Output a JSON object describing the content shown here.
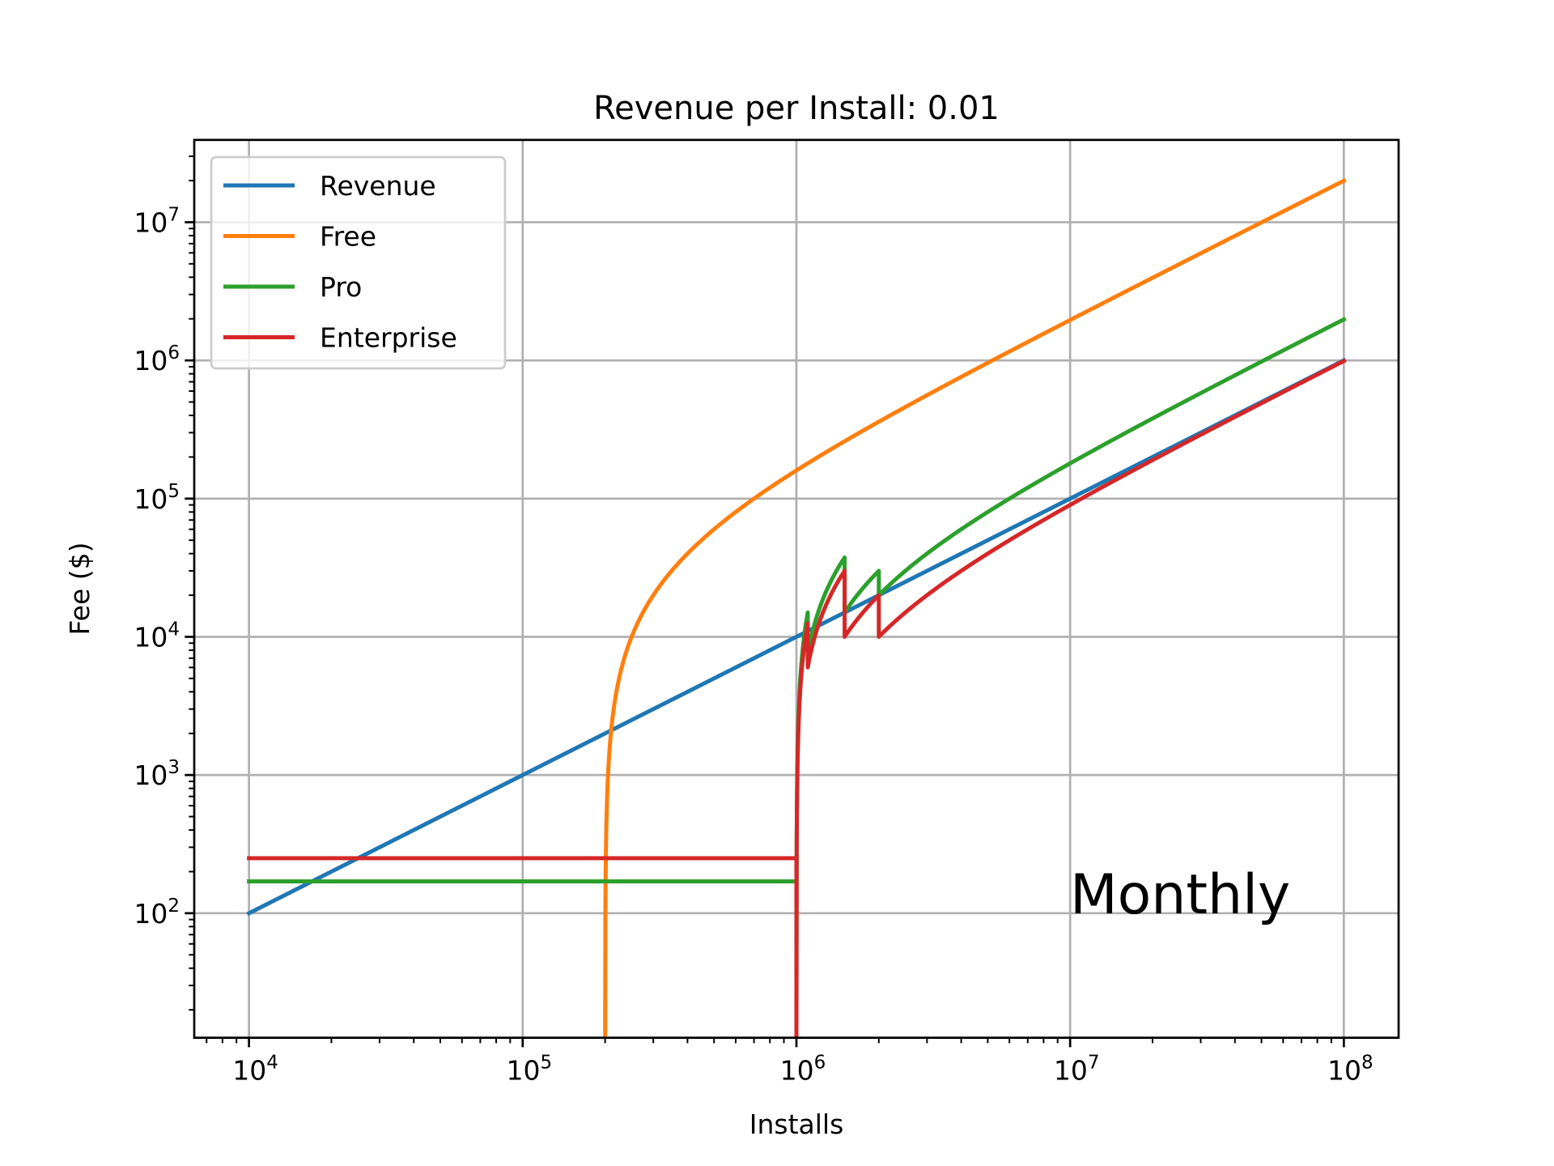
{
  "chart_data": {
    "type": "line",
    "title": "Revenue per Install: 0.01",
    "xlabel": "Installs",
    "ylabel": "Fee ($)",
    "xscale": "log",
    "yscale": "log",
    "xlim": [
      6310,
      158500000
    ],
    "ylim": [
      12.56,
      39400000
    ],
    "grid": true,
    "legend_placement": "top-left",
    "annotation": "Monthly",
    "x_range": [
      10000,
      100000000
    ],
    "x_ticks": [
      {
        "base": "10",
        "exp": "4",
        "value": 10000
      },
      {
        "base": "10",
        "exp": "5",
        "value": 100000
      },
      {
        "base": "10",
        "exp": "6",
        "value": 1000000
      },
      {
        "base": "10",
        "exp": "7",
        "value": 10000000
      },
      {
        "base": "10",
        "exp": "8",
        "value": 100000000
      }
    ],
    "y_ticks": [
      {
        "base": "10",
        "exp": "2",
        "value": 100
      },
      {
        "base": "10",
        "exp": "3",
        "value": 1000
      },
      {
        "base": "10",
        "exp": "4",
        "value": 10000
      },
      {
        "base": "10",
        "exp": "5",
        "value": 100000
      },
      {
        "base": "10",
        "exp": "6",
        "value": 1000000
      },
      {
        "base": "10",
        "exp": "7",
        "value": 10000000
      }
    ],
    "series": [
      {
        "name": "Revenue",
        "color": "#1f77b4",
        "model": "linear",
        "rate": 0.01
      },
      {
        "name": "Free",
        "color": "#ff7f0e",
        "model": "threshold",
        "threshold": 200000,
        "rate": 0.2
      },
      {
        "name": "Pro",
        "color": "#2ca02c",
        "model": "tiered",
        "flat": 170,
        "threshold": 1000000,
        "tiers": [
          [
            1100000,
            0.15
          ],
          [
            1500000,
            0.075
          ],
          [
            2000000,
            0.03
          ],
          [
            1000000000,
            0.02
          ]
        ]
      },
      {
        "name": "Enterprise",
        "color": "#d62728",
        "model": "tiered",
        "flat": 250,
        "threshold": 1000000,
        "tiers": [
          [
            1100000,
            0.125
          ],
          [
            1500000,
            0.06
          ],
          [
            2000000,
            0.02
          ],
          [
            1000000000,
            0.01
          ]
        ]
      }
    ]
  }
}
